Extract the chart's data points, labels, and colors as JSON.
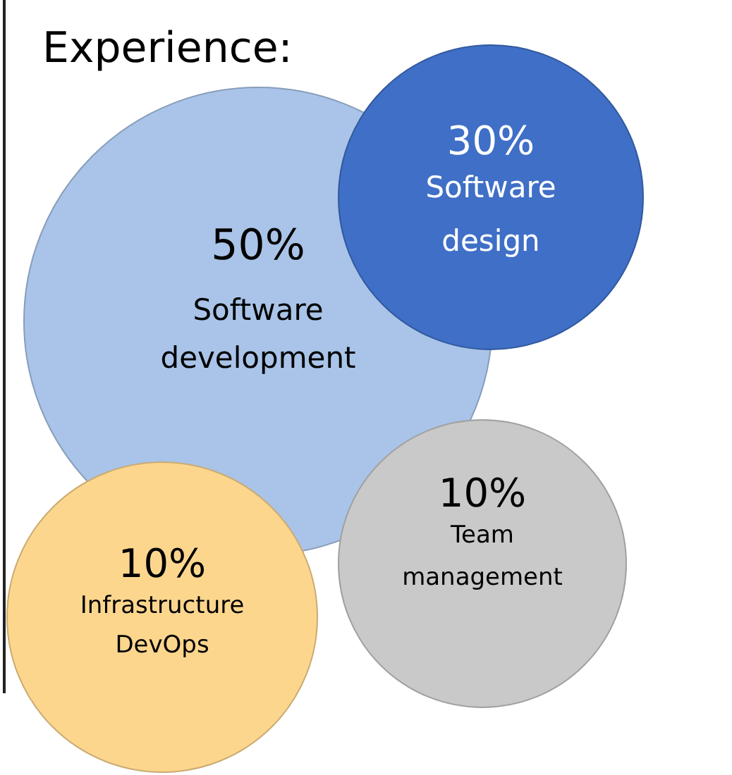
{
  "chart_data": {
    "type": "other",
    "title": "Experience:",
    "categories": [
      "Software development",
      "Software design",
      "Team management",
      "Infrastructure DevOps"
    ],
    "values": [
      50,
      30,
      10,
      10
    ],
    "value_labels": [
      "50%",
      "30%",
      "10%",
      "10%"
    ],
    "colors": [
      "#a9c4e8",
      "#3f6fc6",
      "#c9c9c9",
      "#fdd68e"
    ]
  }
}
